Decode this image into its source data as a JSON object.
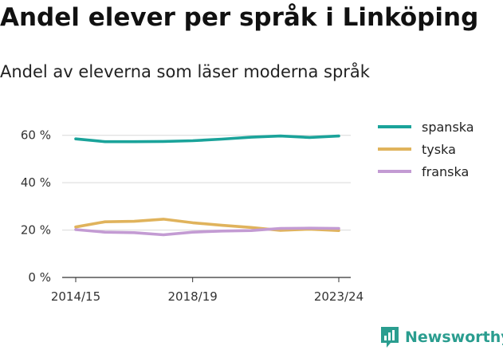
{
  "header": {
    "title": "Andel elever per språk i Linköping",
    "subtitle": "Andel av eleverna som läser moderna språk"
  },
  "brand": {
    "name": "Newsworthy",
    "icon": "bar-chart-bubble-icon",
    "color": "#2a9d8f"
  },
  "chart_data": {
    "type": "line",
    "x": [
      "2014/15",
      "2015/16",
      "2016/17",
      "2017/18",
      "2018/19",
      "2019/20",
      "2020/21",
      "2021/22",
      "2022/23",
      "2023/24"
    ],
    "x_tick_labels": [
      "2014/15",
      "2018/19",
      "2023/24"
    ],
    "ylim": [
      0,
      70
    ],
    "y_ticks": [
      0,
      20,
      40,
      60
    ],
    "y_tick_labels": [
      "0 %",
      "20 %",
      "40 %",
      "60 %"
    ],
    "grid": true,
    "legend_position": "right",
    "series": [
      {
        "name": "spanska",
        "color": "#1aa39a",
        "values": [
          58.5,
          57.3,
          57.3,
          57.4,
          57.7,
          58.4,
          59.2,
          59.7,
          59.1,
          59.7
        ]
      },
      {
        "name": "tyska",
        "color": "#e0b35c",
        "values": [
          21.3,
          23.5,
          23.7,
          24.6,
          23.1,
          22.0,
          21.1,
          19.9,
          20.4,
          19.8
        ]
      },
      {
        "name": "franska",
        "color": "#c39bd3",
        "values": [
          20.2,
          19.1,
          18.9,
          18.0,
          19.1,
          19.6,
          19.8,
          20.7,
          20.8,
          20.7
        ]
      }
    ]
  }
}
